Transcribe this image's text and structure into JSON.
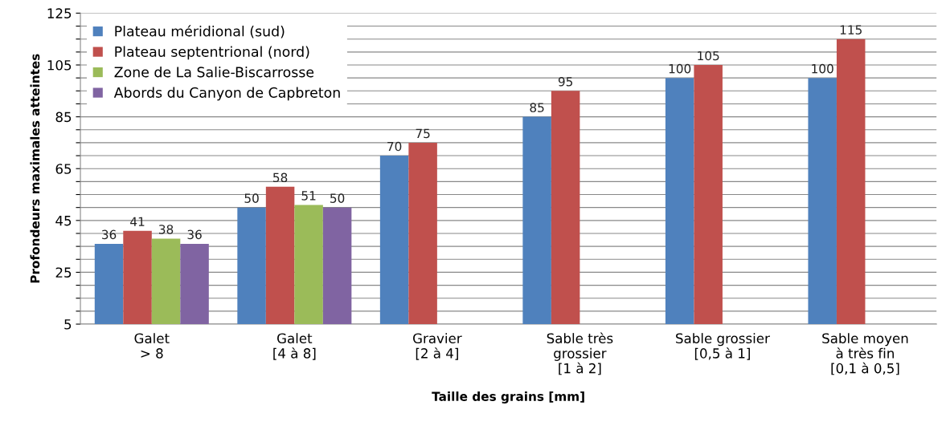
{
  "chart_data": {
    "type": "bar",
    "xlabel": "Taille des grains [mm]",
    "ylabel": "Profondeurs maximales atteintes",
    "categories": [
      "Galet\n> 8",
      "Galet\n[4 à 8]",
      "Gravier\n[2 à 4]",
      "Sable très\ngrossier\n[1 à 2]",
      "Sable grossier\n[0,5 à 1]",
      "Sable moyen\nà très fin\n[0,1 à 0,5]"
    ],
    "series": [
      {
        "name": "Plateau méridional (sud)",
        "color": "#4f81bd",
        "values": [
          36,
          50,
          70,
          85,
          100,
          100
        ]
      },
      {
        "name": "Plateau septentrional (nord)",
        "color": "#c0504d",
        "values": [
          41,
          58,
          75,
          95,
          105,
          115
        ]
      },
      {
        "name": "Zone de La Salie-Biscarrosse",
        "color": "#9bbb59",
        "values": [
          38,
          51,
          null,
          null,
          null,
          null
        ]
      },
      {
        "name": "Abords du Canyon de Capbreton",
        "color": "#8064a2",
        "values": [
          36,
          50,
          null,
          null,
          null,
          null
        ]
      }
    ],
    "ylim": [
      5,
      125
    ],
    "yticks": [
      5,
      {
        "value": 10,
        "label": null
      },
      {
        "value": 15,
        "label": null
      },
      {
        "value": 20,
        "label": null
      },
      25,
      {
        "value": 30,
        "label": null
      },
      {
        "value": 35,
        "label": null
      },
      {
        "value": 40,
        "label": null
      },
      45,
      {
        "value": 50,
        "label": null
      },
      {
        "value": 55,
        "label": null
      },
      {
        "value": 60,
        "label": null
      },
      65,
      {
        "value": 70,
        "label": null
      },
      {
        "value": 75,
        "label": null
      },
      {
        "value": 80,
        "label": null
      },
      85,
      {
        "value": 90,
        "label": null
      },
      {
        "value": 95,
        "label": null
      },
      {
        "value": 100,
        "label": null
      },
      105,
      {
        "value": 110,
        "label": null
      },
      {
        "value": 115,
        "label": null
      },
      {
        "value": 120,
        "label": null
      },
      125
    ],
    "grid": "y",
    "legend": "top left",
    "data_labels": true
  }
}
